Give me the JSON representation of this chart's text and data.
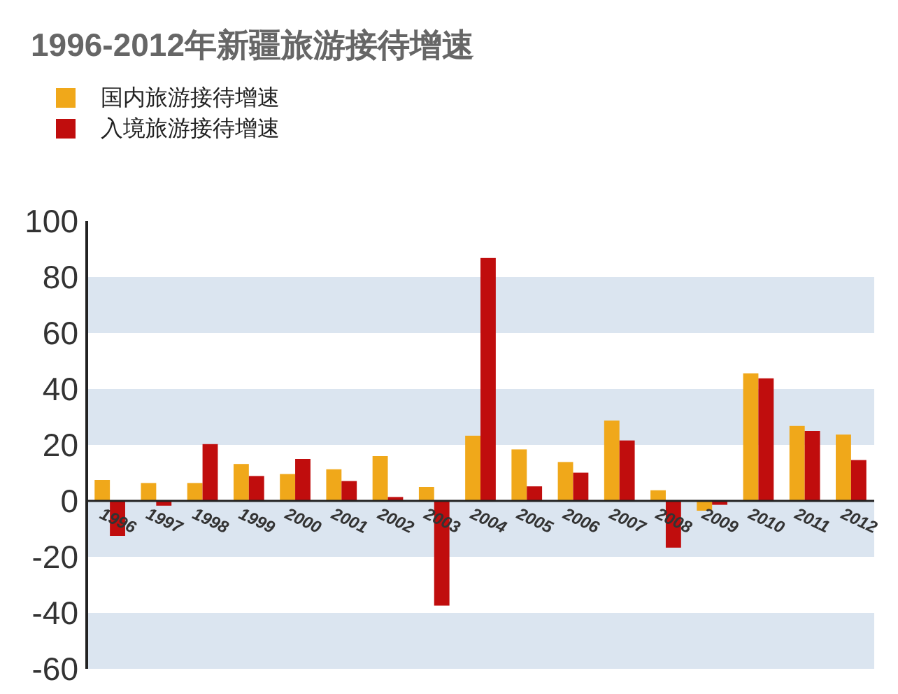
{
  "chart_data": {
    "type": "bar",
    "title": "1996-2012年新疆旅游接待增速",
    "categories": [
      "1996",
      "1997",
      "1998",
      "1999",
      "2000",
      "2001",
      "2002",
      "2003",
      "2004",
      "2005",
      "2006",
      "2007",
      "2008",
      "2009",
      "2010",
      "2011",
      "2012"
    ],
    "series": [
      {
        "name": "国内旅游接待增速",
        "color": "#f0a81a",
        "values": [
          7.5,
          6.4,
          6.4,
          13.2,
          9.6,
          11.3,
          16,
          5,
          23.3,
          18.4,
          13.9,
          28.7,
          3.8,
          -3.5,
          45.6,
          26.8,
          23.7
        ]
      },
      {
        "name": "入境旅游接待增速",
        "color": "#c00d0d",
        "values": [
          -12.5,
          -1.7,
          20.3,
          8.9,
          15,
          7.1,
          1.4,
          -37.4,
          86.8,
          5.2,
          10.1,
          21.6,
          -16.7,
          -1.4,
          43.8,
          25,
          14.6
        ]
      }
    ],
    "ylim": [
      -60,
      100
    ],
    "yticks": [
      -60,
      -40,
      -20,
      0,
      20,
      40,
      60,
      80,
      100
    ],
    "bands": [
      {
        "axis": "y",
        "from": 60,
        "to": 80,
        "color": "#dbe5f0"
      },
      {
        "axis": "y",
        "from": 20,
        "to": 40,
        "color": "#dbe5f0"
      },
      {
        "axis": "y",
        "from": -20,
        "to": 0,
        "color": "#dbe5f0"
      },
      {
        "axis": "y",
        "from": -60,
        "to": -40,
        "color": "#dbe5f0"
      }
    ],
    "legend": "top left"
  }
}
